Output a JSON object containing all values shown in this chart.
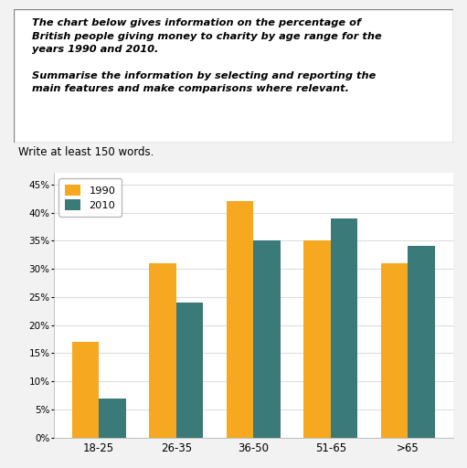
{
  "categories": [
    "18-25",
    "26-35",
    "36-50",
    "51-65",
    ">65"
  ],
  "values_1990": [
    17,
    31,
    42,
    35,
    31
  ],
  "values_2010": [
    7,
    24,
    35,
    39,
    34
  ],
  "color_1990": "#F5A820",
  "color_2010": "#3A7A78",
  "legend_labels": [
    "1990",
    "2010"
  ],
  "yticks": [
    0,
    5,
    10,
    15,
    20,
    25,
    30,
    35,
    40,
    45
  ],
  "ylim": [
    0,
    47
  ],
  "bar_width": 0.35,
  "chart_bg_color": "#C8DCE0",
  "plot_bg_color": "#FFFFFF",
  "fig_bg_color": "#F2F2F2",
  "subtitle": "Write at least 150 words.",
  "grid_color": "#DDDDDD",
  "text_line1": "The chart below gives information on the percentage of",
  "text_line2": "British people giving money to charity by age range for the",
  "text_line3": "years 1990 and 2010.",
  "text_line4": "",
  "text_line5": "Summarise the information by selecting and reporting the",
  "text_line6": "main features and make comparisons where relevant."
}
